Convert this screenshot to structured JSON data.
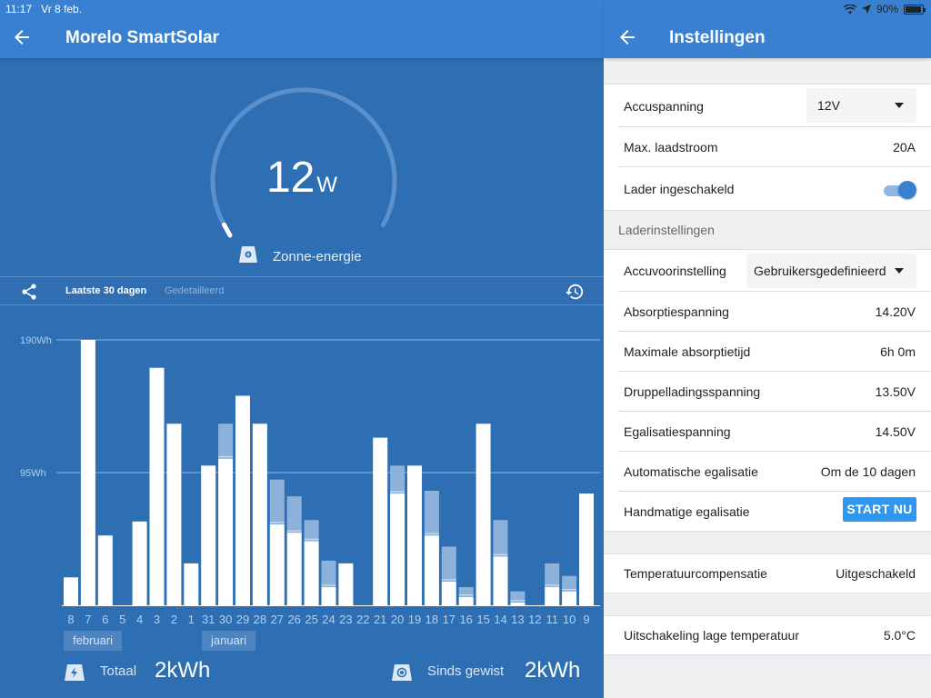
{
  "status_bar": {
    "time": "11:17",
    "date": "Vr 8 feb.",
    "battery": "90%"
  },
  "left": {
    "title": "Morelo SmartSolar",
    "gauge": {
      "value": "12",
      "unit": "W",
      "label": "Zonne-energie",
      "fraction": 0
    },
    "tabs": {
      "active": "Laatste 30 dagen",
      "inactive": "Gedetailleerd"
    },
    "months": {
      "february": "februari",
      "january": "januari"
    },
    "totals": {
      "total_label": "Totaal",
      "total_value": "2kWh",
      "since_label": "Sinds gewist",
      "since_value": "2kWh"
    }
  },
  "right": {
    "title": "Instellingen",
    "battery_voltage": {
      "label": "Accuspanning",
      "value": "12V"
    },
    "max_charge_current": {
      "label": "Max. laadstroom",
      "value": "20A"
    },
    "charger_enabled": {
      "label": "Lader ingeschakeld",
      "on": true
    },
    "section_charger": "Laderinstellingen",
    "battery_preset": {
      "label": "Accuvoorinstelling",
      "value": "Gebruikersgedefinieerd"
    },
    "absorption_voltage": {
      "label": "Absorptiespanning",
      "value": "14.20V"
    },
    "max_absorption_time": {
      "label": "Maximale absorptietijd",
      "value": "6h 0m"
    },
    "float_voltage": {
      "label": "Druppelladingsspanning",
      "value": "13.50V"
    },
    "equalization_voltage": {
      "label": "Egalisatiespanning",
      "value": "14.50V"
    },
    "auto_equalization": {
      "label": "Automatische egalisatie",
      "value": "Om de 10 dagen"
    },
    "manual_equalization": {
      "label": "Handmatige egalisatie",
      "button": "START NU"
    },
    "temp_compensation": {
      "label": "Temperatuurcompensatie",
      "value": "Uitgeschakeld"
    },
    "low_temp_cutoff": {
      "label": "Uitschakeling lage temperatuur",
      "value": "5.0°C"
    }
  },
  "chart_data": {
    "type": "bar",
    "ylim": [
      0,
      190
    ],
    "yticks": [
      "190Wh",
      "95Wh"
    ],
    "ytick_values": [
      190,
      95
    ],
    "categories": [
      "8",
      "7",
      "6",
      "5",
      "4",
      "3",
      "2",
      "1",
      "31",
      "30",
      "29",
      "28",
      "27",
      "26",
      "25",
      "24",
      "23",
      "22",
      "21",
      "20",
      "19",
      "18",
      "17",
      "16",
      "15",
      "14",
      "13",
      "12",
      "11",
      "10",
      "9"
    ],
    "series": [
      {
        "values": [
          20,
          190,
          50,
          0,
          60,
          170,
          130,
          30,
          100,
          105,
          150,
          130,
          58,
          52,
          46,
          13,
          30,
          0,
          120,
          80,
          100,
          50,
          17,
          6,
          130,
          35,
          2,
          0,
          13,
          10,
          80
        ]
      },
      {
        "values": [
          0,
          0,
          0,
          0,
          0,
          0,
          0,
          0,
          0,
          25,
          0,
          0,
          32,
          26,
          15,
          19,
          0,
          0,
          0,
          20,
          0,
          32,
          25,
          7,
          0,
          26,
          8,
          0,
          17,
          11,
          0
        ]
      }
    ],
    "colors": {
      "bar": "#ffffff",
      "stack": "#8cb2dc",
      "grid": "#8fb3dc",
      "label": "#b8cfe8"
    }
  }
}
